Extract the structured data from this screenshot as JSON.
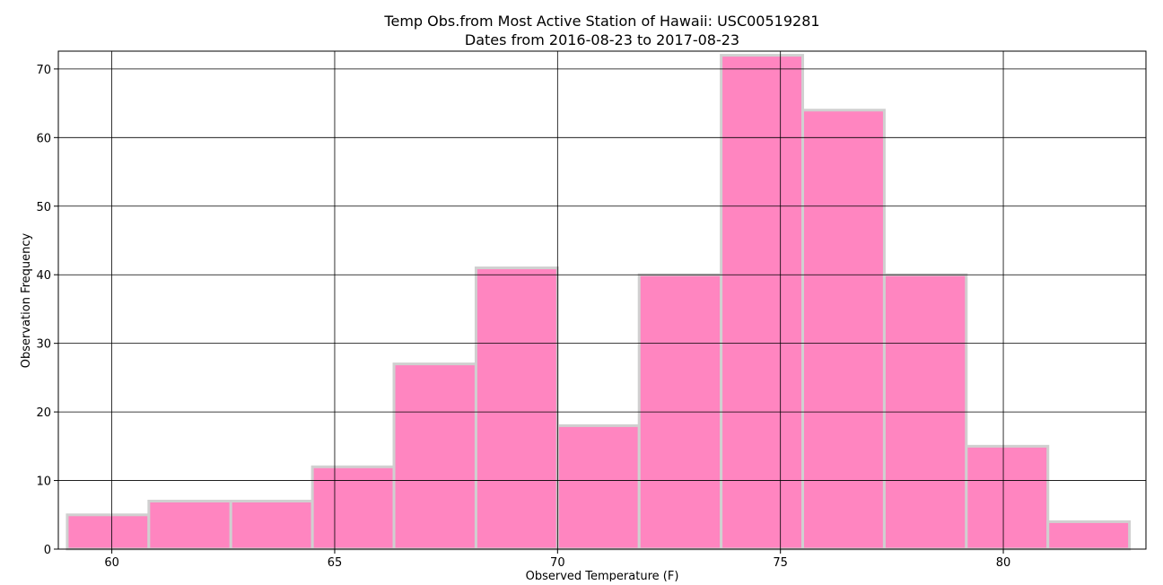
{
  "chart_data": {
    "type": "bar",
    "title": "Temp Obs.from Most Active Station of Hawaii: USC00519281",
    "subtitle": "Dates from 2016-08-23 to 2017-08-23",
    "xlabel": "Observed Temperature (F)",
    "ylabel": "Observation Frequency",
    "xlim": [
      58.8,
      83.2
    ],
    "ylim": [
      0,
      72.6
    ],
    "xticks": [
      60,
      65,
      70,
      75,
      80
    ],
    "yticks": [
      0,
      10,
      20,
      30,
      40,
      50,
      60,
      70
    ],
    "grid": true,
    "bar_color": "#ff85c0",
    "edge_color": "#d0d0d0",
    "bins": [
      {
        "x0": 59.0,
        "x1": 60.83,
        "count": 5
      },
      {
        "x0": 60.83,
        "x1": 62.67,
        "count": 7
      },
      {
        "x0": 62.67,
        "x1": 64.5,
        "count": 7
      },
      {
        "x0": 64.5,
        "x1": 66.33,
        "count": 12
      },
      {
        "x0": 66.33,
        "x1": 68.17,
        "count": 27
      },
      {
        "x0": 68.17,
        "x1": 70.0,
        "count": 41
      },
      {
        "x0": 70.0,
        "x1": 71.83,
        "count": 18
      },
      {
        "x0": 71.83,
        "x1": 73.67,
        "count": 40
      },
      {
        "x0": 73.67,
        "x1": 75.5,
        "count": 72
      },
      {
        "x0": 75.5,
        "x1": 77.33,
        "count": 64
      },
      {
        "x0": 77.33,
        "x1": 79.17,
        "count": 40
      },
      {
        "x0": 79.17,
        "x1": 81.0,
        "count": 15
      },
      {
        "x0": 81.0,
        "x1": 82.83,
        "count": 4
      }
    ]
  }
}
